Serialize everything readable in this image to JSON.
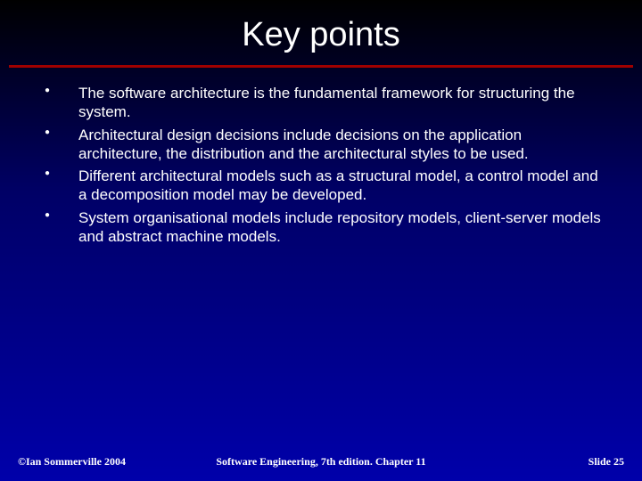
{
  "slide": {
    "title": "Key points",
    "title_color": "#ffffff",
    "title_fontsize": 38,
    "rule_color": "#a00000",
    "rule_width": 3,
    "background_gradient": [
      "#000000",
      "#000033",
      "#000066",
      "#0000aa"
    ],
    "bullets": [
      "The software architecture is the fundamental framework for structuring the system.",
      "Architectural design decisions include decisions on the application architecture, the distribution and the architectural styles to be used.",
      "Different architectural models such as a structural model, a control model and a decomposition model may be developed.",
      "System organisational models include repository models, client-server models and abstract machine models."
    ],
    "bullet_color": "#ffffff",
    "bullet_fontsize": 17,
    "bullet_marker": "●",
    "footer": {
      "left": "©Ian Sommerville 2004",
      "center": "Software Engineering, 7th edition. Chapter 11",
      "right": "Slide 25",
      "color": "#ffffff",
      "fontsize": 12
    }
  }
}
